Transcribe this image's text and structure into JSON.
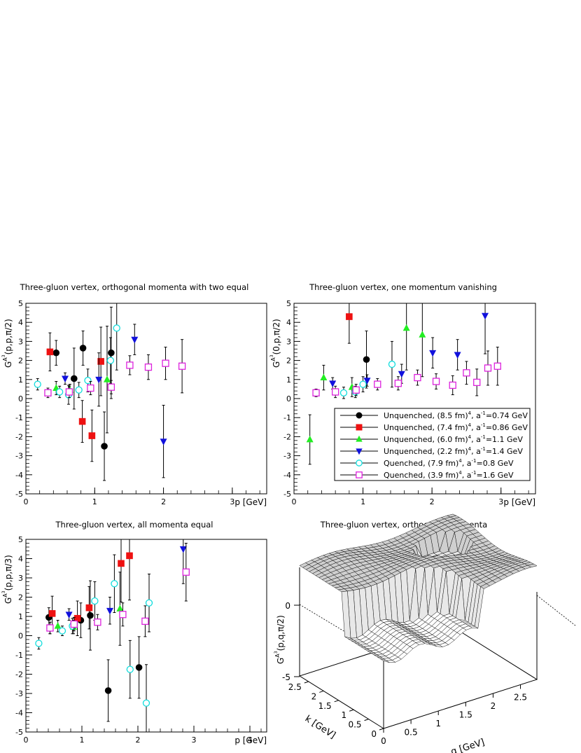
{
  "series_styles": [
    {
      "name": "Unquenched, (8.5 fm)^4, a^-1=0.74 GeV",
      "label": "Unquenched, (8.5 fm)",
      "label_tail": ", a",
      "label_end": "=0.74 GeV",
      "marker": "circle",
      "filled": true,
      "color": "#000000"
    },
    {
      "name": "Unquenched, (7.4 fm)^4, a^-1=0.86 GeV",
      "label": "Unquenched, (7.4 fm)",
      "label_tail": ", a",
      "label_end": "=0.86 GeV",
      "marker": "square",
      "filled": true,
      "color": "#ee1111"
    },
    {
      "name": "Unquenched, (6.0 fm)^4, a^-1=1.1 GeV",
      "label": "Unquenched, (6.0 fm)",
      "label_tail": ", a",
      "label_end": "=1.1 GeV",
      "marker": "triangle-up",
      "filled": true,
      "color": "#22ee22"
    },
    {
      "name": "Unquenched, (2.2 fm)^4, a^-1=1.4 GeV",
      "label": "Unquenched, (2.2 fm)",
      "label_tail": ", a",
      "label_end": "=1.4 GeV",
      "marker": "triangle-down",
      "filled": true,
      "color": "#1111dd"
    },
    {
      "name": "Quenched, (7.9 fm)^4, a^-1=0.8 GeV",
      "label": "Quenched, (7.9 fm)",
      "label_tail": ", a",
      "label_end": "=0.8 GeV",
      "marker": "circle",
      "filled": false,
      "color": "#11dddd"
    },
    {
      "name": "Quenched, (3.9 fm)^4, a^-1=1.6 GeV",
      "label": "Quenched, (3.9 fm)",
      "label_tail": ", a",
      "label_end": "=1.6 GeV",
      "marker": "square",
      "filled": false,
      "color": "#dd22dd"
    }
  ],
  "chart_data": [
    {
      "type": "scatter",
      "title": "Three-gluon vertex, orthogonal momenta with two equal",
      "xlabel": "p [GeV]",
      "ylabel": "G^{A^3}(p,p,π/2)",
      "ylabel_main": "G",
      "ylabel_sup": "A",
      "ylabel_sup2": "3",
      "ylabel_rest": "(p,p,π/2)",
      "xlim": [
        0,
        3.5
      ],
      "ylim": [
        -5,
        5
      ],
      "xticks": [
        "0",
        "1",
        "2",
        "3"
      ],
      "yticks": [
        "-5",
        "-4",
        "-3",
        "-2",
        "-1",
        "0",
        "1",
        "2",
        "3",
        "4",
        "5"
      ],
      "series": [
        {
          "name": "Unquenched, (8.5 fm)^4, a^-1=0.74 GeV",
          "points": [
            [
              0.44,
              2.4,
              0.65
            ],
            [
              0.7,
              1.05,
              1.6
            ],
            [
              0.83,
              2.65,
              0.9
            ],
            [
              1.14,
              -2.5,
              1.8
            ],
            [
              1.24,
              2.4,
              2.4
            ]
          ]
        },
        {
          "name": "Unquenched, (7.4 fm)^4, a^-1=0.86 GeV",
          "points": [
            [
              0.35,
              2.45,
              1.0
            ],
            [
              0.82,
              -1.2,
              1.1
            ],
            [
              0.96,
              -1.95,
              1.35
            ],
            [
              1.09,
              1.95,
              1.8
            ]
          ]
        },
        {
          "name": "Unquenched, (6.0 fm)^4, a^-1=1.1 GeV",
          "points": [
            [
              0.44,
              0.55,
              0.35
            ],
            [
              0.64,
              0.45,
              0.3
            ],
            [
              1.18,
              1.0,
              2.8
            ]
          ]
        },
        {
          "name": "Unquenched, (2.2 fm)^4, a^-1=1.4 GeV",
          "points": [
            [
              0.57,
              1.05,
              0.3
            ],
            [
              1.06,
              1.0,
              1.4
            ],
            [
              1.58,
              3.1,
              0.8
            ],
            [
              2.0,
              -2.25,
              1.9
            ]
          ]
        },
        {
          "name": "Quenched, (7.9 fm)^4, a^-1=0.8 GeV",
          "points": [
            [
              0.17,
              0.75,
              0.3
            ],
            [
              0.49,
              0.35,
              0.3
            ],
            [
              0.62,
              0.2,
              0.5
            ],
            [
              0.77,
              0.45,
              0.4
            ],
            [
              0.9,
              0.95,
              0.6
            ],
            [
              1.23,
              2.0,
              1.2
            ],
            [
              1.32,
              3.7,
              2.2
            ]
          ]
        },
        {
          "name": "Quenched, (3.9 fm)^4, a^-1=1.6 GeV",
          "points": [
            [
              0.32,
              0.3,
              0.25
            ],
            [
              0.63,
              0.35,
              0.3
            ],
            [
              0.94,
              0.55,
              0.35
            ],
            [
              1.24,
              0.6,
              0.35
            ],
            [
              1.51,
              1.75,
              0.5
            ],
            [
              1.78,
              1.65,
              0.65
            ],
            [
              2.03,
              1.85,
              0.85
            ],
            [
              2.27,
              1.7,
              1.4
            ]
          ]
        }
      ]
    },
    {
      "type": "scatter",
      "title": "Three-gluon vertex, one momentum vanishing",
      "xlabel": "p [GeV]",
      "ylabel": "G^{A^3}(0,p,π/2)",
      "ylabel_main": "G",
      "ylabel_sup": "A",
      "ylabel_sup2": "3",
      "ylabel_rest": "(0,p,π/2)",
      "xlim": [
        0,
        3.5
      ],
      "ylim": [
        -5,
        5
      ],
      "xticks": [
        "0",
        "1",
        "2",
        "3"
      ],
      "yticks": [
        "-5",
        "-4",
        "-3",
        "-2",
        "-1",
        "0",
        "1",
        "2",
        "3",
        "4",
        "5"
      ],
      "legend": "center-right",
      "series": [
        {
          "name": "Unquenched, (8.5 fm)^4, a^-1=0.74 GeV",
          "points": [
            [
              1.05,
              2.05,
              1.5
            ]
          ]
        },
        {
          "name": "Unquenched, (7.4 fm)^4, a^-1=0.86 GeV",
          "points": [
            [
              0.8,
              4.3,
              1.4
            ]
          ]
        },
        {
          "name": "Unquenched, (6.0 fm)^4, a^-1=1.1 GeV",
          "points": [
            [
              0.23,
              -2.15,
              1.3
            ],
            [
              0.43,
              1.1,
              0.65
            ],
            [
              0.84,
              0.6,
              0.5
            ],
            [
              1.63,
              3.7,
              2.2
            ],
            [
              1.86,
              3.35,
              2.2
            ]
          ]
        },
        {
          "name": "Unquenched, (2.2 fm)^4, a^-1=1.4 GeV",
          "points": [
            [
              0.56,
              0.8,
              0.3
            ],
            [
              1.06,
              0.95,
              0.3
            ],
            [
              1.56,
              1.3,
              0.5
            ],
            [
              2.01,
              2.4,
              0.8
            ],
            [
              2.37,
              2.3,
              0.8
            ],
            [
              2.77,
              4.35,
              2.0
            ]
          ]
        },
        {
          "name": "Quenched, (7.9 fm)^4, a^-1=0.8 GeV",
          "points": [
            [
              0.72,
              0.3,
              0.3
            ],
            [
              0.89,
              0.35,
              0.3
            ],
            [
              1.0,
              0.75,
              0.4
            ],
            [
              1.42,
              1.8,
              1.2
            ]
          ]
        },
        {
          "name": "Quenched, (3.9 fm)^4, a^-1=1.6 GeV",
          "points": [
            [
              0.32,
              0.3,
              0.2
            ],
            [
              0.6,
              0.35,
              0.3
            ],
            [
              0.9,
              0.45,
              0.3
            ],
            [
              1.21,
              0.75,
              0.3
            ],
            [
              1.51,
              0.8,
              0.35
            ],
            [
              1.79,
              1.1,
              0.4
            ],
            [
              2.06,
              0.9,
              0.4
            ],
            [
              2.3,
              0.7,
              0.5
            ],
            [
              2.5,
              1.35,
              0.6
            ],
            [
              2.65,
              0.85,
              0.7
            ],
            [
              2.81,
              1.6,
              0.9
            ],
            [
              2.95,
              1.7,
              1.0
            ]
          ]
        }
      ]
    },
    {
      "type": "scatter",
      "title": "Three-gluon vertex, all momenta equal",
      "xlabel": "p [GeV]",
      "ylabel": "G^{A^3}(p,p,π/3)",
      "ylabel_main": "G",
      "ylabel_sup": "A",
      "ylabel_sup2": "3",
      "ylabel_rest": "(p,p,π/3)",
      "xlim": [
        0,
        4.3
      ],
      "ylim": [
        -5,
        5
      ],
      "xticks": [
        "0",
        "1",
        "2",
        "3",
        "4"
      ],
      "yticks": [
        "-5",
        "-4",
        "-3",
        "-2",
        "-1",
        "0",
        "1",
        "2",
        "3",
        "4",
        "5"
      ],
      "series": [
        {
          "name": "Unquenched, (8.5 fm)^4, a^-1=0.74 GeV",
          "points": [
            [
              0.41,
              0.95,
              0.5
            ],
            [
              0.98,
              0.8,
              0.9
            ],
            [
              1.15,
              1.05,
              1.8
            ],
            [
              1.47,
              -2.85,
              1.6
            ],
            [
              2.02,
              -1.65,
              1.6
            ]
          ]
        },
        {
          "name": "Unquenched, (7.4 fm)^4, a^-1=0.86 GeV",
          "points": [
            [
              0.47,
              1.15,
              0.9
            ],
            [
              0.92,
              0.9,
              0.9
            ],
            [
              1.13,
              1.45,
              1.1
            ],
            [
              1.7,
              3.75,
              2.0
            ],
            [
              1.85,
              4.15,
              2.3
            ]
          ]
        },
        {
          "name": "Unquenched, (6.0 fm)^4, a^-1=1.1 GeV",
          "points": [
            [
              0.57,
              0.5,
              0.3
            ],
            [
              0.85,
              0.45,
              0.35
            ],
            [
              1.68,
              1.4,
              1.9
            ]
          ]
        },
        {
          "name": "Unquenched, (2.2 fm)^4, a^-1=1.4 GeV",
          "points": [
            [
              0.77,
              1.1,
              0.3
            ],
            [
              1.5,
              1.3,
              0.7
            ],
            [
              2.81,
              4.5,
              1.8
            ]
          ]
        },
        {
          "name": "Quenched, (7.9 fm)^4, a^-1=0.8 GeV",
          "points": [
            [
              0.23,
              -0.4,
              0.3
            ],
            [
              0.43,
              0.4,
              0.3
            ],
            [
              0.65,
              0.25,
              0.25
            ],
            [
              0.83,
              0.5,
              0.4
            ],
            [
              1.23,
              1.8,
              1.0
            ],
            [
              1.58,
              2.7,
              1.5
            ],
            [
              1.86,
              -1.75,
              1.5
            ],
            [
              2.15,
              -3.5,
              2.0
            ],
            [
              2.2,
              1.7,
              1.5
            ]
          ]
        },
        {
          "name": "Quenched, (3.9 fm)^4, a^-1=1.6 GeV",
          "points": [
            [
              0.43,
              0.4,
              0.3
            ],
            [
              0.86,
              0.6,
              0.35
            ],
            [
              1.28,
              0.7,
              0.4
            ],
            [
              1.73,
              1.1,
              0.6
            ],
            [
              2.13,
              0.75,
              0.8
            ],
            [
              2.86,
              3.3,
              1.5
            ]
          ]
        }
      ]
    },
    {
      "type": "surface",
      "title": "Three-gluon vertex, orthogonal momenta",
      "xlabel": "q [GeV]",
      "ylabel": "k [GeV]",
      "zlabel": "G^{A^3}(p,q,π/2)",
      "zlabel_main": "G",
      "zlabel_sup": "A",
      "zlabel_sup2": "3",
      "zlabel_rest": "(p,q,π/2)",
      "xlim": [
        0,
        2.8
      ],
      "ylim": [
        0,
        2.8
      ],
      "zlim": [
        -5,
        5
      ],
      "xticks": [
        "0",
        "0.5",
        "1",
        "1.5",
        "2",
        "2.5"
      ],
      "yticks": [
        "0",
        "0.5",
        "1",
        "1.5",
        "2",
        "2.5"
      ],
      "zticks": [
        "-5",
        "0"
      ]
    }
  ]
}
